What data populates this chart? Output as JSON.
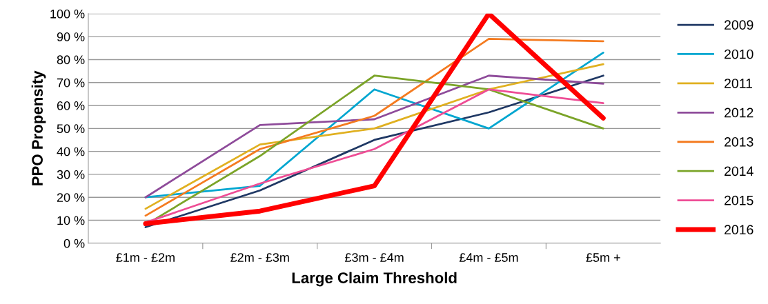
{
  "chart_data": {
    "type": "line",
    "xlabel": "Large Claim Threshold",
    "ylabel": "PPO Propensity",
    "categories": [
      "£1m - £2m",
      "£2m - £3m",
      "£3m - £4m",
      "£4m - £5m",
      "£5m +"
    ],
    "ylim": [
      0,
      100
    ],
    "yticks": [
      {
        "value": 0,
        "label": "0 %"
      },
      {
        "value": 10,
        "label": "10 %"
      },
      {
        "value": 20,
        "label": "20 %"
      },
      {
        "value": 30,
        "label": "30 %"
      },
      {
        "value": 40,
        "label": "40 %"
      },
      {
        "value": 50,
        "label": "50 %"
      },
      {
        "value": 60,
        "label": "60 %"
      },
      {
        "value": 70,
        "label": "70 %"
      },
      {
        "value": 80,
        "label": "80 %"
      },
      {
        "value": 90,
        "label": "90 %"
      },
      {
        "value": 100,
        "label": "100 %"
      }
    ],
    "grid": "y",
    "legend": "right",
    "marker": "none",
    "series": [
      {
        "name": "2009",
        "color": "#1f3864",
        "values": [
          7,
          23,
          45,
          57,
          73
        ]
      },
      {
        "name": "2010",
        "color": "#00a6d0",
        "values": [
          20,
          25,
          67,
          50,
          83
        ]
      },
      {
        "name": "2011",
        "color": "#e0b020",
        "values": [
          15,
          43,
          50,
          67,
          78
        ]
      },
      {
        "name": "2012",
        "color": "#8e4b9a",
        "values": [
          20,
          51.5,
          54,
          73,
          69.5
        ]
      },
      {
        "name": "2013",
        "color": "#f47b20",
        "values": [
          12,
          41,
          55.5,
          89,
          88
        ]
      },
      {
        "name": "2014",
        "color": "#7ba428",
        "values": [
          8,
          38,
          73,
          67,
          50
        ]
      },
      {
        "name": "2015",
        "color": "#ee4d95",
        "values": [
          9,
          26,
          41,
          67,
          61
        ]
      },
      {
        "name": "2016",
        "color": "#ff0000",
        "values": [
          8.5,
          14,
          25,
          100,
          54.5
        ]
      }
    ]
  }
}
